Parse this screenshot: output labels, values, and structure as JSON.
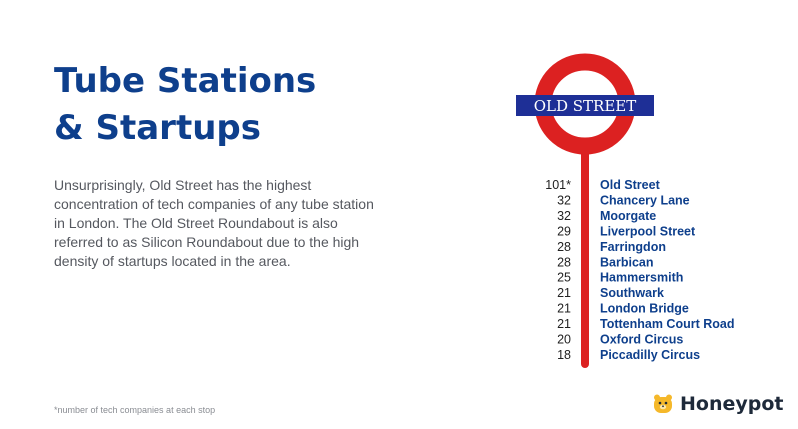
{
  "title_line1": "Tube Stations",
  "title_line2": "& Startups",
  "description": "Unsurprisingly, Old Street has the highest concentration of tech companies of any tube station in London. The Old Street Roundabout is also referred to as Silicon Roundabout due to the high density of startups located in the area.",
  "footnote": "*number of tech companies at each stop",
  "logo": {
    "text": "Honeypot",
    "icon": "honeypot-bear-icon"
  },
  "roundel": {
    "label": "OLD STREET"
  },
  "colors": {
    "title": "#0e3f8c",
    "label_blue": "#0e3f8c",
    "roundel_red": "#dc2121",
    "roundel_bar": "#1e2f96",
    "value_text": "#222222",
    "logo_yellow": "#f5b82a"
  },
  "chart_data": {
    "type": "table",
    "categories": [
      "Old Street",
      "Chancery Lane",
      "Moorgate",
      "Liverpool Street",
      "Farringdon",
      "Barbican",
      "Hammersmith",
      "Southwark",
      "London Bridge",
      "Tottenham Court Road",
      "Oxford Circus",
      "Piccadilly Circus"
    ],
    "values": [
      101,
      32,
      32,
      29,
      28,
      28,
      25,
      21,
      21,
      21,
      20,
      18
    ],
    "value_labels": [
      "101*",
      "32",
      "32",
      "29",
      "28",
      "28",
      "25",
      "21",
      "21",
      "21",
      "20",
      "18"
    ]
  }
}
